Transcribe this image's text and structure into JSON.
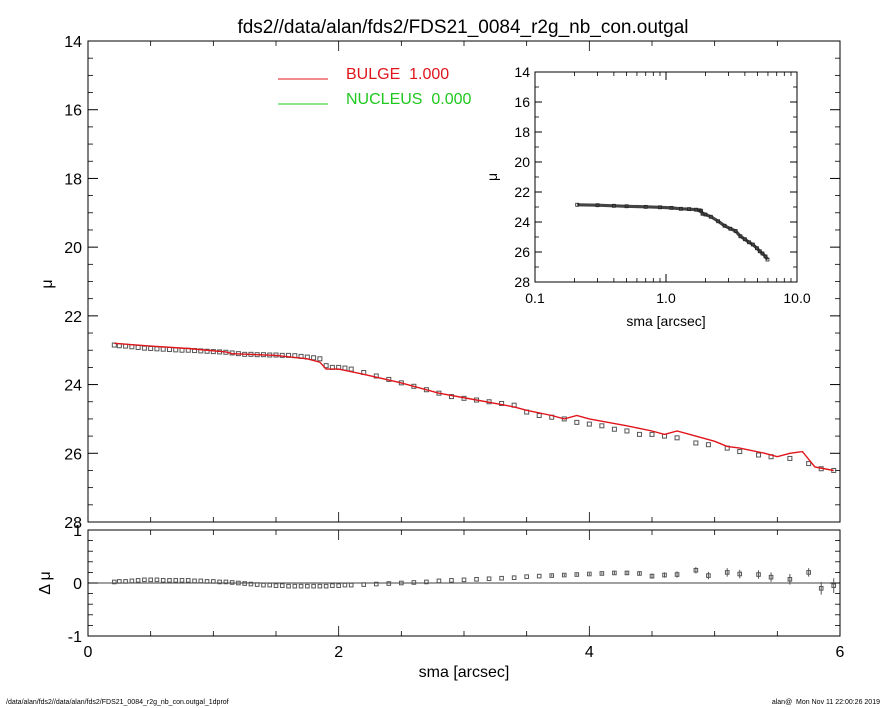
{
  "title": "fds2//data/alan/fds2/FDS21_0084_r2g_nb_con.outgal",
  "footer_left": "/data/alan/fds2//data/alan/fds2/FDS21_0084_r2g_nb_con.outgal_1dprof",
  "footer_right": "alan@  Mon Nov 11 22:00:26 2019",
  "colors": {
    "bulge": "#e0151b",
    "nucleus": "#1ec81e",
    "axes": "#000000",
    "points": "#555555"
  },
  "chart_data": [
    {
      "type": "line",
      "name": "main-profile",
      "xlabel": "",
      "ylabel": "μ",
      "xlim": [
        0,
        6
      ],
      "ylim": [
        28,
        14
      ],
      "yticks": [
        "14",
        "16",
        "18",
        "20",
        "22",
        "24",
        "26",
        "28"
      ],
      "legend": [
        {
          "label": "BULGE  1.000",
          "color": "#e0151b"
        },
        {
          "label": "NUCLEUS  0.000",
          "color": "#1ec81e"
        }
      ],
      "legend_position": "top-center",
      "series": [
        {
          "name": "BULGE",
          "x": [
            0.21,
            0.5,
            0.8,
            1.1,
            1.15,
            1.5,
            1.75,
            1.85,
            1.9,
            2.0,
            2.2,
            2.5,
            2.8,
            3.1,
            3.4,
            3.5,
            3.7,
            3.8,
            3.9,
            4.0,
            4.3,
            4.5,
            4.6,
            4.7,
            4.9,
            5.0,
            5.1,
            5.2,
            5.4,
            5.5,
            5.6,
            5.7,
            5.8,
            5.95
          ],
          "y": [
            22.8,
            22.88,
            22.95,
            23.05,
            23.1,
            23.15,
            23.25,
            23.35,
            23.55,
            23.55,
            23.7,
            23.95,
            24.25,
            24.45,
            24.65,
            24.75,
            24.9,
            25.0,
            24.9,
            25.0,
            25.2,
            25.35,
            25.45,
            25.35,
            25.55,
            25.65,
            25.8,
            25.85,
            26.0,
            26.1,
            26.0,
            25.95,
            26.4,
            26.5
          ]
        },
        {
          "name": "data",
          "x": [
            0.21,
            0.25,
            0.3,
            0.35,
            0.4,
            0.45,
            0.5,
            0.55,
            0.6,
            0.65,
            0.7,
            0.75,
            0.8,
            0.85,
            0.9,
            0.95,
            1.0,
            1.05,
            1.1,
            1.15,
            1.2,
            1.25,
            1.3,
            1.35,
            1.4,
            1.45,
            1.5,
            1.55,
            1.6,
            1.65,
            1.7,
            1.75,
            1.8,
            1.85,
            1.9,
            1.95,
            2.0,
            2.05,
            2.1,
            2.2,
            2.3,
            2.4,
            2.5,
            2.6,
            2.7,
            2.8,
            2.9,
            3.0,
            3.1,
            3.2,
            3.3,
            3.4,
            3.5,
            3.6,
            3.7,
            3.8,
            3.9,
            4.0,
            4.1,
            4.2,
            4.3,
            4.4,
            4.5,
            4.6,
            4.7,
            4.85,
            4.95,
            5.1,
            5.2,
            5.35,
            5.45,
            5.6,
            5.75,
            5.85,
            5.95
          ],
          "y": [
            22.85,
            22.87,
            22.88,
            22.9,
            22.92,
            22.94,
            22.95,
            22.96,
            22.97,
            22.98,
            22.99,
            23.0,
            23.0,
            23.01,
            23.02,
            23.03,
            23.04,
            23.05,
            23.06,
            23.08,
            23.1,
            23.12,
            23.12,
            23.13,
            23.13,
            23.14,
            23.14,
            23.15,
            23.15,
            23.16,
            23.18,
            23.2,
            23.22,
            23.25,
            23.45,
            23.5,
            23.5,
            23.52,
            23.55,
            23.65,
            23.75,
            23.85,
            23.95,
            24.05,
            24.15,
            24.25,
            24.35,
            24.4,
            24.45,
            24.5,
            24.55,
            24.6,
            24.8,
            24.9,
            24.95,
            25.0,
            25.1,
            25.15,
            25.2,
            25.3,
            25.35,
            25.45,
            25.45,
            25.5,
            25.55,
            25.7,
            25.75,
            25.85,
            25.95,
            26.05,
            26.1,
            26.15,
            26.3,
            26.45,
            26.5
          ]
        }
      ]
    },
    {
      "type": "scatter",
      "name": "residuals",
      "xlabel": "sma [arcsec]",
      "ylabel": "Δ μ",
      "xlim": [
        0,
        6
      ],
      "ylim": [
        -1,
        1
      ],
      "xticks": [
        "0",
        "2",
        "4",
        "6"
      ],
      "yticks": [
        "1",
        "0",
        "-1"
      ],
      "series": [
        {
          "name": "residual",
          "x": [
            0.21,
            0.25,
            0.3,
            0.35,
            0.4,
            0.45,
            0.5,
            0.55,
            0.6,
            0.65,
            0.7,
            0.75,
            0.8,
            0.85,
            0.9,
            0.95,
            1.0,
            1.05,
            1.1,
            1.15,
            1.2,
            1.25,
            1.3,
            1.35,
            1.4,
            1.45,
            1.5,
            1.55,
            1.6,
            1.65,
            1.7,
            1.75,
            1.8,
            1.85,
            1.9,
            1.95,
            2.0,
            2.05,
            2.1,
            2.2,
            2.3,
            2.4,
            2.5,
            2.6,
            2.7,
            2.8,
            2.9,
            3.0,
            3.1,
            3.2,
            3.3,
            3.4,
            3.5,
            3.6,
            3.7,
            3.8,
            3.9,
            4.0,
            4.1,
            4.2,
            4.3,
            4.4,
            4.5,
            4.6,
            4.7,
            4.85,
            4.95,
            5.1,
            5.2,
            5.35,
            5.45,
            5.6,
            5.75,
            5.85,
            5.95
          ],
          "y": [
            0.02,
            0.03,
            0.03,
            0.04,
            0.05,
            0.06,
            0.06,
            0.06,
            0.05,
            0.05,
            0.05,
            0.05,
            0.05,
            0.04,
            0.04,
            0.03,
            0.03,
            0.02,
            0.02,
            0.01,
            0.0,
            -0.01,
            -0.02,
            -0.03,
            -0.04,
            -0.04,
            -0.05,
            -0.05,
            -0.06,
            -0.06,
            -0.06,
            -0.06,
            -0.06,
            -0.06,
            -0.06,
            -0.05,
            -0.05,
            -0.04,
            -0.04,
            -0.03,
            -0.02,
            -0.01,
            0.0,
            0.01,
            0.02,
            0.04,
            0.05,
            0.06,
            0.07,
            0.08,
            0.09,
            0.1,
            0.12,
            0.13,
            0.14,
            0.15,
            0.16,
            0.17,
            0.18,
            0.19,
            0.19,
            0.18,
            0.13,
            0.15,
            0.16,
            0.24,
            0.14,
            0.2,
            0.17,
            0.16,
            0.11,
            0.07,
            0.2,
            -0.1,
            -0.05
          ],
          "err": [
            0.01,
            0.01,
            0.01,
            0.01,
            0.01,
            0.01,
            0.01,
            0.01,
            0.01,
            0.01,
            0.01,
            0.01,
            0.01,
            0.01,
            0.01,
            0.01,
            0.01,
            0.01,
            0.01,
            0.01,
            0.01,
            0.01,
            0.01,
            0.01,
            0.01,
            0.01,
            0.01,
            0.01,
            0.01,
            0.01,
            0.01,
            0.01,
            0.01,
            0.01,
            0.01,
            0.01,
            0.01,
            0.01,
            0.01,
            0.01,
            0.01,
            0.01,
            0.01,
            0.01,
            0.01,
            0.01,
            0.01,
            0.01,
            0.01,
            0.01,
            0.01,
            0.01,
            0.01,
            0.01,
            0.02,
            0.02,
            0.02,
            0.02,
            0.02,
            0.03,
            0.03,
            0.03,
            0.05,
            0.05,
            0.06,
            0.06,
            0.07,
            0.08,
            0.08,
            0.08,
            0.09,
            0.1,
            0.08,
            0.12,
            0.14
          ]
        }
      ]
    },
    {
      "type": "line",
      "name": "inset-log-profile",
      "xlabel": "sma [arcsec]",
      "ylabel": "μ",
      "xscale": "log",
      "xlim": [
        0.1,
        10
      ],
      "ylim": [
        28,
        14
      ],
      "xticks": [
        "0.1",
        "1.0",
        "10.0"
      ],
      "yticks": [
        "14",
        "16",
        "18",
        "20",
        "22",
        "24",
        "26",
        "28"
      ],
      "series": [
        {
          "name": "data",
          "x": [
            0.21,
            0.3,
            0.4,
            0.5,
            0.7,
            0.9,
            1.1,
            1.3,
            1.5,
            1.7,
            1.8,
            1.85,
            1.9,
            2.0,
            2.2,
            2.5,
            2.8,
            3.1,
            3.4,
            3.7,
            4.0,
            4.3,
            4.6,
            4.95,
            5.2,
            5.45,
            5.75,
            5.95
          ],
          "y": [
            22.85,
            22.88,
            22.92,
            22.95,
            22.99,
            23.02,
            23.06,
            23.12,
            23.14,
            23.18,
            23.22,
            23.25,
            23.45,
            23.5,
            23.65,
            23.95,
            24.25,
            24.45,
            24.6,
            24.95,
            25.15,
            25.35,
            25.5,
            25.75,
            25.95,
            26.1,
            26.3,
            26.5
          ]
        }
      ]
    }
  ]
}
